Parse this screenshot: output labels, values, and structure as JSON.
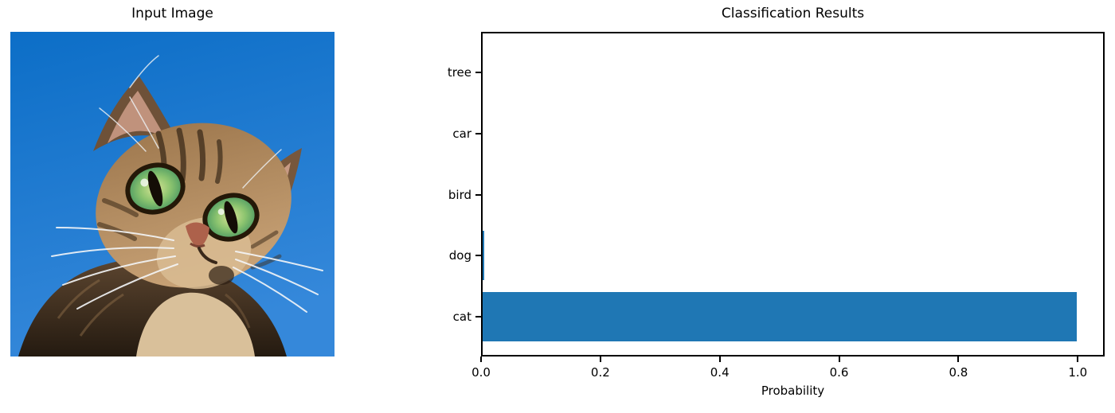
{
  "left_panel": {
    "title": "Input Image",
    "image_description": "Photo of a brown tabby cat with green eyes looking upward against a clear blue sky"
  },
  "chart_data": {
    "type": "bar",
    "orientation": "horizontal",
    "title": "Classification Results",
    "xlabel": "Probability",
    "ylabel": "",
    "categories_top_to_bottom": [
      "tree",
      "car",
      "bird",
      "dog",
      "cat"
    ],
    "values": [
      0.0,
      0.0,
      0.0,
      0.003,
      0.995
    ],
    "xtick_labels": [
      "0.0",
      "0.2",
      "0.4",
      "0.6",
      "0.8",
      "1.0"
    ],
    "xtick_values": [
      0.0,
      0.2,
      0.4,
      0.6,
      0.8,
      1.0
    ],
    "xlim": [
      0.0,
      1.045
    ],
    "grid": false,
    "legend": null,
    "bar_color": "#1f77b4"
  },
  "colors": {
    "background": "#ffffff",
    "text": "#000000",
    "axes": "#000000",
    "bar": "#1f77b4",
    "sky_top": "#0c6ec7",
    "sky_bottom": "#3588da"
  }
}
